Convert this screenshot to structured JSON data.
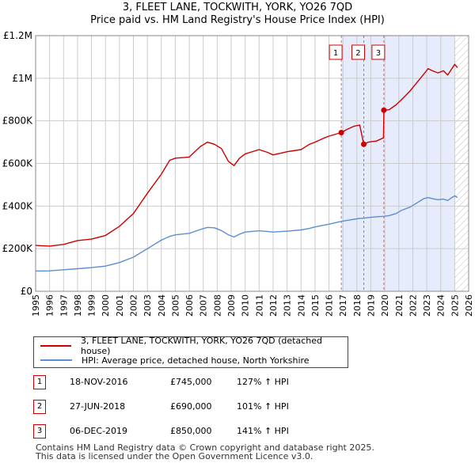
{
  "colors": {
    "property_line": "#cc0000",
    "hpi_line": "#5b8fd0",
    "shade": "#e6ecfb",
    "marker_line": "#cc0000",
    "grid": "#cccccc",
    "hatch": "#bbbbbb"
  },
  "title": {
    "line1": "3, FLEET LANE, TOCKWITH, YORK, YO26 7QD",
    "line2": "Price paid vs. HM Land Registry's House Price Index (HPI)"
  },
  "chart_data": {
    "type": "line",
    "title": "Price paid vs. HM Land Registry's House Price Index (HPI)",
    "xlim": [
      1995,
      2026
    ],
    "ylim": [
      0,
      1200000
    ],
    "x_ticks": [
      "1995",
      "1996",
      "1997",
      "1998",
      "1999",
      "2000",
      "2001",
      "2002",
      "2003",
      "2004",
      "2005",
      "2006",
      "2007",
      "2008",
      "2009",
      "2010",
      "2011",
      "2012",
      "2013",
      "2014",
      "2015",
      "2016",
      "2017",
      "2018",
      "2019",
      "2020",
      "2021",
      "2022",
      "2023",
      "2024",
      "2025",
      "2026"
    ],
    "y_ticks": [
      {
        "value": 0,
        "label": "£0"
      },
      {
        "value": 200000,
        "label": "£200K"
      },
      {
        "value": 400000,
        "label": "£400K"
      },
      {
        "value": 600000,
        "label": "£600K"
      },
      {
        "value": 800000,
        "label": "£800K"
      },
      {
        "value": 1000000,
        "label": "£1M"
      },
      {
        "value": 1200000,
        "label": "£1.2M"
      }
    ],
    "shaded_region": [
      2016.88,
      2025.0
    ],
    "hatched_region": [
      2025.0,
      2026
    ],
    "series": [
      {
        "name": "3, FLEET LANE, TOCKWITH, YORK, YO26 7QD (detached house)",
        "color": "#cc0000",
        "points": [
          [
            1995.0,
            215000
          ],
          [
            1996.0,
            212000
          ],
          [
            1997.0,
            220000
          ],
          [
            1998.0,
            238000
          ],
          [
            1999.0,
            245000
          ],
          [
            2000.0,
            262000
          ],
          [
            2001.0,
            305000
          ],
          [
            2002.0,
            365000
          ],
          [
            2003.0,
            460000
          ],
          [
            2004.0,
            550000
          ],
          [
            2004.6,
            615000
          ],
          [
            2005.0,
            625000
          ],
          [
            2006.0,
            630000
          ],
          [
            2006.8,
            680000
          ],
          [
            2007.3,
            700000
          ],
          [
            2007.8,
            690000
          ],
          [
            2008.3,
            670000
          ],
          [
            2008.8,
            610000
          ],
          [
            2009.2,
            590000
          ],
          [
            2009.6,
            625000
          ],
          [
            2010.0,
            645000
          ],
          [
            2011.0,
            665000
          ],
          [
            2011.6,
            652000
          ],
          [
            2012.0,
            640000
          ],
          [
            2013.0,
            655000
          ],
          [
            2014.0,
            665000
          ],
          [
            2014.6,
            690000
          ],
          [
            2015.0,
            700000
          ],
          [
            2015.6,
            718000
          ],
          [
            2016.0,
            728000
          ],
          [
            2016.88,
            745000
          ],
          [
            2017.3,
            760000
          ],
          [
            2017.8,
            775000
          ],
          [
            2018.2,
            780000
          ],
          [
            2018.49,
            690000
          ],
          [
            2018.8,
            700000
          ],
          [
            2019.4,
            705000
          ],
          [
            2019.9,
            720000
          ],
          [
            2019.93,
            850000
          ],
          [
            2020.3,
            852000
          ],
          [
            2020.8,
            875000
          ],
          [
            2021.2,
            900000
          ],
          [
            2021.8,
            940000
          ],
          [
            2022.3,
            980000
          ],
          [
            2022.8,
            1020000
          ],
          [
            2023.1,
            1045000
          ],
          [
            2023.4,
            1035000
          ],
          [
            2023.8,
            1025000
          ],
          [
            2024.2,
            1035000
          ],
          [
            2024.5,
            1015000
          ],
          [
            2024.8,
            1045000
          ],
          [
            2025.0,
            1065000
          ],
          [
            2025.2,
            1050000
          ]
        ]
      },
      {
        "name": "HPI: Average price, detached house, North Yorkshire",
        "color": "#5b8fd0",
        "points": [
          [
            1995.0,
            95000
          ],
          [
            1996.0,
            96000
          ],
          [
            1997.0,
            101000
          ],
          [
            1998.0,
            106000
          ],
          [
            1999.0,
            111000
          ],
          [
            2000.0,
            118000
          ],
          [
            2001.0,
            135000
          ],
          [
            2002.0,
            160000
          ],
          [
            2003.0,
            200000
          ],
          [
            2004.0,
            240000
          ],
          [
            2004.6,
            258000
          ],
          [
            2005.0,
            265000
          ],
          [
            2006.0,
            272000
          ],
          [
            2006.8,
            290000
          ],
          [
            2007.3,
            300000
          ],
          [
            2007.8,
            298000
          ],
          [
            2008.3,
            285000
          ],
          [
            2008.8,
            265000
          ],
          [
            2009.2,
            255000
          ],
          [
            2009.6,
            268000
          ],
          [
            2010.0,
            278000
          ],
          [
            2011.0,
            284000
          ],
          [
            2011.6,
            281000
          ],
          [
            2012.0,
            278000
          ],
          [
            2013.0,
            282000
          ],
          [
            2014.0,
            288000
          ],
          [
            2014.6,
            295000
          ],
          [
            2015.0,
            302000
          ],
          [
            2015.6,
            310000
          ],
          [
            2016.0,
            315000
          ],
          [
            2016.88,
            328000
          ],
          [
            2017.3,
            333000
          ],
          [
            2017.8,
            338000
          ],
          [
            2018.2,
            342000
          ],
          [
            2018.49,
            343000
          ],
          [
            2018.8,
            346000
          ],
          [
            2019.4,
            350000
          ],
          [
            2019.93,
            352000
          ],
          [
            2020.3,
            355000
          ],
          [
            2020.8,
            365000
          ],
          [
            2021.2,
            380000
          ],
          [
            2021.8,
            395000
          ],
          [
            2022.3,
            415000
          ],
          [
            2022.8,
            435000
          ],
          [
            2023.1,
            440000
          ],
          [
            2023.4,
            435000
          ],
          [
            2023.8,
            430000
          ],
          [
            2024.2,
            433000
          ],
          [
            2024.5,
            426000
          ],
          [
            2024.8,
            440000
          ],
          [
            2025.0,
            448000
          ],
          [
            2025.2,
            440000
          ]
        ]
      }
    ],
    "sales": [
      {
        "id": "1",
        "x": 2016.88,
        "price": 745000
      },
      {
        "id": "2",
        "x": 2018.49,
        "price": 690000
      },
      {
        "id": "3",
        "x": 2019.93,
        "price": 850000
      }
    ]
  },
  "legend": {
    "property_label": "3, FLEET LANE, TOCKWITH, YORK, YO26 7QD (detached house)",
    "hpi_label": "HPI: Average price, detached house, North Yorkshire"
  },
  "transactions": [
    {
      "num": "1",
      "date": "18-NOV-2016",
      "price": "£745,000",
      "hpi": "127% ↑ HPI"
    },
    {
      "num": "2",
      "date": "27-JUN-2018",
      "price": "£690,000",
      "hpi": "101% ↑ HPI"
    },
    {
      "num": "3",
      "date": "06-DEC-2019",
      "price": "£850,000",
      "hpi": "141% ↑ HPI"
    }
  ],
  "footer": {
    "line1": "Contains HM Land Registry data © Crown copyright and database right 2025.",
    "line2": "This data is licensed under the Open Government Licence v3.0."
  }
}
